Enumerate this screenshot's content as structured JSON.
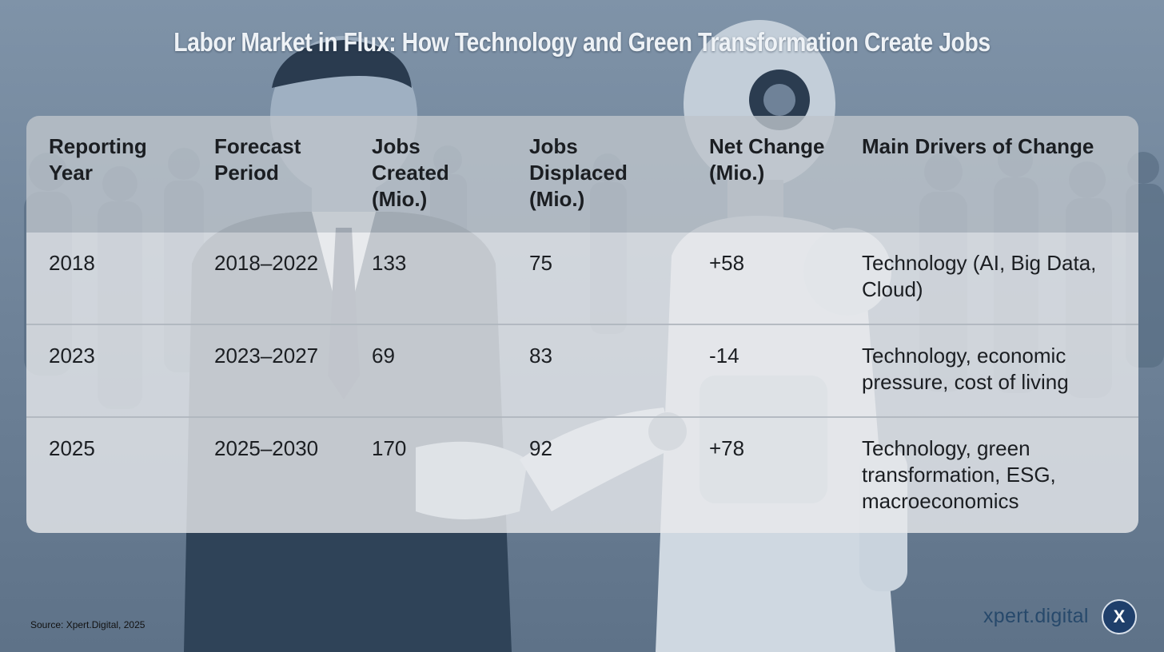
{
  "title": "Labor Market in Flux: How Technology and Green Transformation Create Jobs",
  "table": {
    "headers": [
      "Reporting Year",
      "Forecast Period",
      "Jobs Created (Mio.)",
      "Jobs Displaced (Mio.)",
      "Net Change (Mio.)",
      "Main Drivers of Change"
    ],
    "rows": [
      [
        "2018",
        "2018–2022",
        "133",
        "75",
        "+58",
        "Technology (AI, Big Data, Cloud)"
      ],
      [
        "2023",
        "2023–2027",
        "69",
        "83",
        "-14",
        "Technology, economic pressure, cost of living"
      ],
      [
        "2025",
        "2025–2030",
        "170",
        "92",
        "+78",
        "Technology, green transformation, ESG, macroeconomics"
      ]
    ]
  },
  "footer": {
    "source": "Source: Xpert.Digital, 2025",
    "brand_text": "xpert.digital",
    "brand_badge": "X"
  },
  "colors": {
    "background": "#6f8399",
    "brand": "#27496b",
    "badge": "#1f3f6b"
  }
}
